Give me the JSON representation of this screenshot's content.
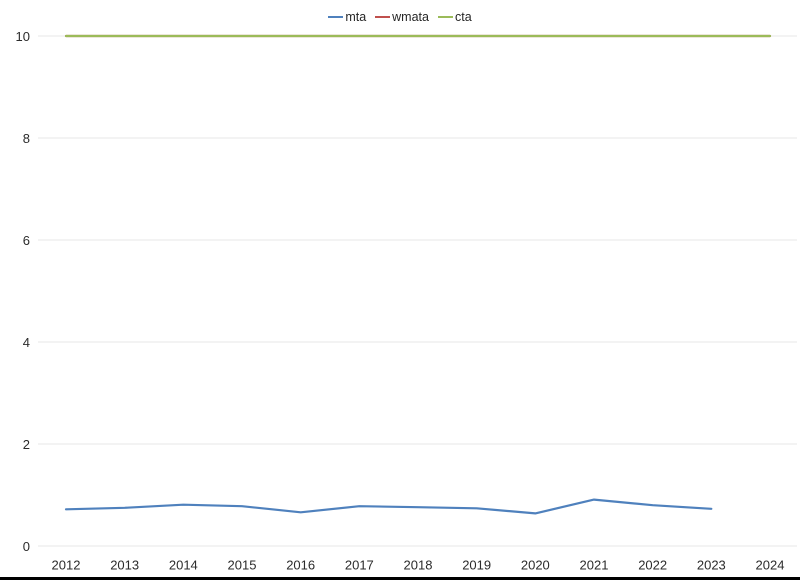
{
  "chart_data": {
    "type": "line",
    "title": "",
    "xlabel": "",
    "ylabel": "",
    "xlim": [
      2012,
      2024
    ],
    "ylim": [
      0,
      10
    ],
    "xticks": [
      2012,
      2013,
      2014,
      2015,
      2016,
      2017,
      2018,
      2019,
      2020,
      2021,
      2022,
      2023,
      2024
    ],
    "yticks": [
      0,
      2,
      4,
      6,
      8,
      10
    ],
    "grid": "horizontal",
    "gridline_color": "#E7E7E7",
    "tick_label_color": "#2B2B2B",
    "legend_position": "top-center",
    "series": [
      {
        "name": "mta",
        "color": "#4F81BD",
        "x": [
          2012,
          2013,
          2014,
          2015,
          2016,
          2017,
          2018,
          2019,
          2020,
          2021,
          2022,
          2023
        ],
        "values": [
          0.72,
          0.75,
          0.81,
          0.78,
          0.66,
          0.78,
          0.76,
          0.74,
          0.64,
          0.91,
          0.8,
          0.73
        ]
      },
      {
        "name": "wmata",
        "color": "#C0504D",
        "x": [
          2012,
          2013,
          2014,
          2015,
          2016,
          2017,
          2018,
          2019,
          2020,
          2021,
          2022,
          2023,
          2024
        ],
        "values": [
          10,
          10,
          10,
          10,
          10,
          10,
          10,
          10,
          10,
          10,
          10,
          10,
          10
        ]
      },
      {
        "name": "cta",
        "color": "#9BBB59",
        "x": [
          2012,
          2013,
          2014,
          2015,
          2016,
          2017,
          2018,
          2019,
          2020,
          2021,
          2022,
          2023,
          2024
        ],
        "values": [
          10,
          10,
          10,
          10,
          10,
          10,
          10,
          10,
          10,
          10,
          10,
          10,
          10
        ]
      }
    ]
  }
}
